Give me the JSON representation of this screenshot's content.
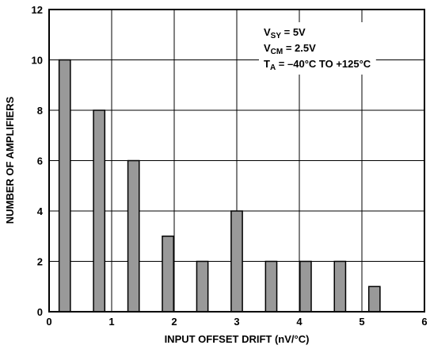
{
  "chart_data": {
    "type": "bar",
    "title": "",
    "xlabel": "INPUT OFFSET DRIFT (nV/°C)",
    "ylabel": "NUMBER OF AMPLIFIERS",
    "xlim": [
      0,
      6
    ],
    "ylim": [
      0,
      12
    ],
    "xticks": [
      0,
      1,
      2,
      3,
      4,
      5,
      6
    ],
    "yticks": [
      0,
      2,
      4,
      6,
      8,
      10,
      12
    ],
    "grid": true,
    "bar_width": 0.18,
    "bar_color": "#999999",
    "x": [
      0.25,
      0.8,
      1.35,
      1.9,
      2.45,
      3.0,
      3.55,
      4.1,
      4.65,
      5.2
    ],
    "values": [
      10,
      8,
      6,
      3,
      2,
      4,
      2,
      2,
      2,
      1
    ],
    "annotations": [
      {
        "parts": [
          [
            "V",
            ""
          ],
          [
            "SY",
            "sub"
          ],
          [
            " = 5V",
            ""
          ]
        ]
      },
      {
        "parts": [
          [
            "V",
            ""
          ],
          [
            "CM",
            "sub"
          ],
          [
            " = 2.5V",
            ""
          ]
        ]
      },
      {
        "parts": [
          [
            "T",
            ""
          ],
          [
            "A",
            "sub"
          ],
          [
            " = –40°C TO +125°C",
            ""
          ]
        ]
      }
    ]
  }
}
